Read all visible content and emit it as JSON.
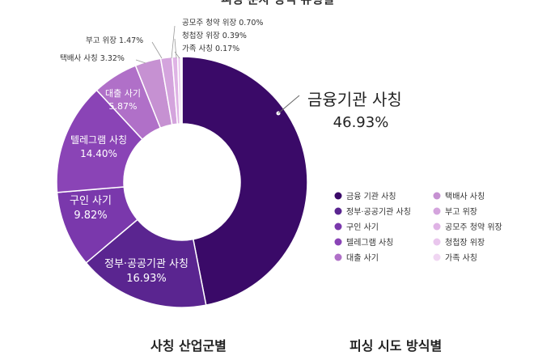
{
  "chart_data": {
    "type": "pie",
    "variant": "donut",
    "title": "피싱 문자 방식 유형별",
    "categories": [
      "금융기관 사칭",
      "정부·공공기관 사칭",
      "구인 사기",
      "텔레그램 사칭",
      "대출 사기",
      "택배사 사칭",
      "부고 위장",
      "공모주 청약 위장",
      "청첩장 위장",
      "가족 사칭"
    ],
    "values": [
      46.93,
      16.93,
      9.82,
      14.4,
      5.87,
      3.32,
      1.47,
      0.7,
      0.39,
      0.17
    ],
    "labels": [
      "금융기관 사칭",
      "정부·공공기관 사칭",
      "구인 사기",
      "텔레그램 사칭",
      "대출 사기",
      "택배사 사칭",
      "부고 위장",
      "공모주 청약 위장",
      "청첩장 위장",
      "가족 사칭"
    ],
    "value_labels": [
      "46.93%",
      "16.93%",
      "9.82%",
      "14.40%",
      "5.87%",
      "3.32%",
      "1.47%",
      "0.70%",
      "0.39%",
      "0.17%"
    ],
    "colors": [
      "#3a0a68",
      "#5a2590",
      "#7a38ac",
      "#8a44b6",
      "#b070c8",
      "#c691d2",
      "#d4a4dd",
      "#dfb3e5",
      "#e9c6ed",
      "#f0d6f2"
    ],
    "legend": {
      "placement": "bottom-right",
      "items": [
        "금융 기관 사칭",
        "정부·공공기관 사칭",
        "구인 사기",
        "텔레그램 사칭",
        "대출 사기",
        "택배사 사칭",
        "부고 위장",
        "공모주 청약 위장",
        "청첩장 위장",
        "가족 사칭"
      ]
    }
  },
  "bottom_titles": {
    "left": "사칭 산업군별",
    "right": "피싱 시도 방식별"
  }
}
